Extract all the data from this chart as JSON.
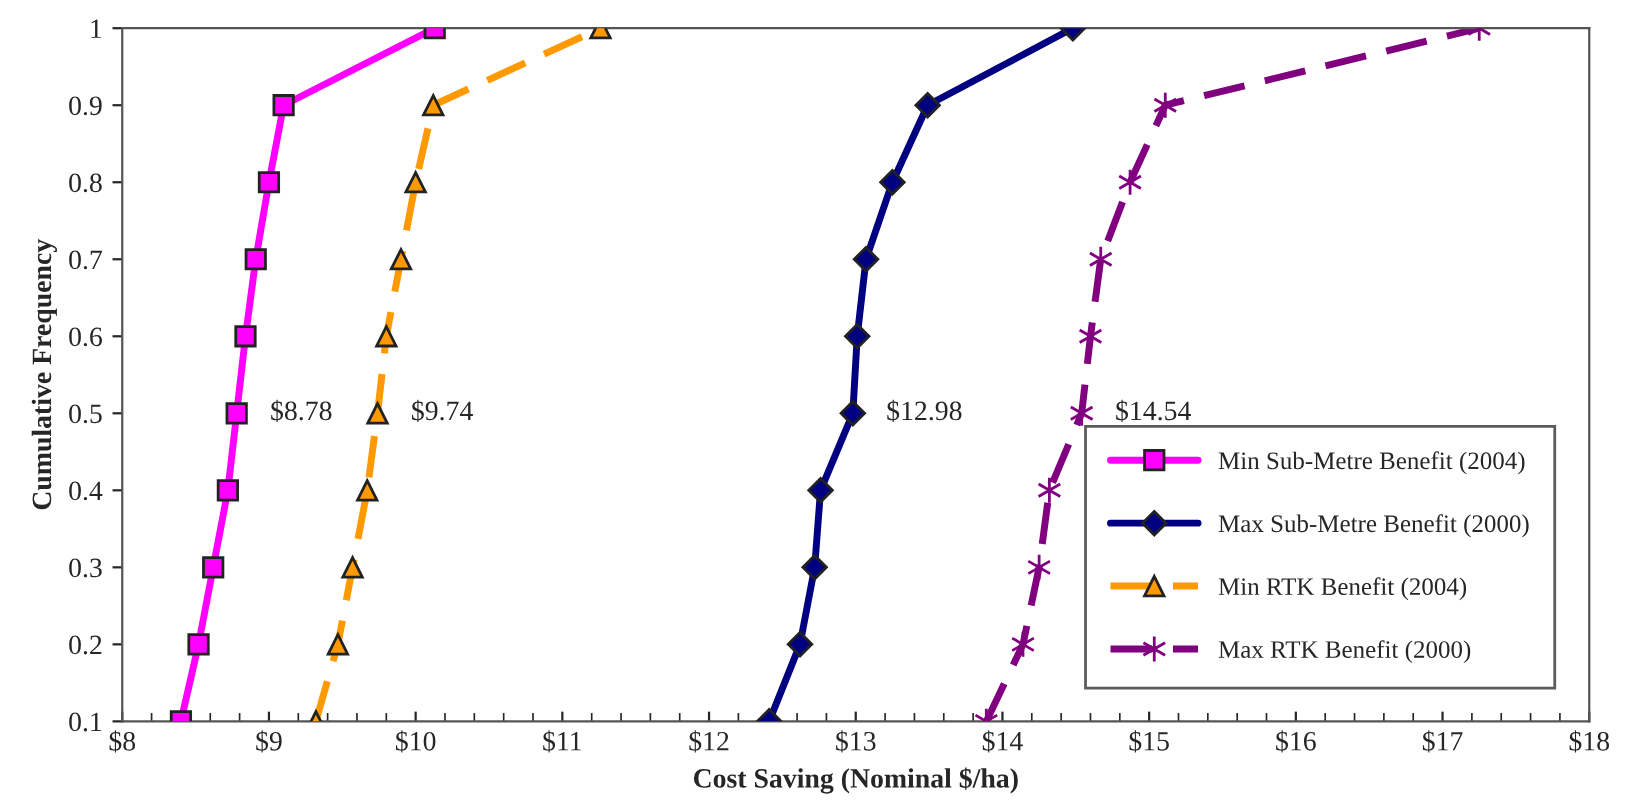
{
  "chart_data": {
    "type": "line",
    "xlabel": "Cost Saving (Nominal $/ha)",
    "ylabel": "Cumulative Frequency",
    "xlim": [
      8,
      18
    ],
    "xticks": [
      {
        "value": 8,
        "label": "$8"
      },
      {
        "value": 9,
        "label": "$9"
      },
      {
        "value": 10,
        "label": "$10"
      },
      {
        "value": 11,
        "label": "$11"
      },
      {
        "value": 12,
        "label": "$12"
      },
      {
        "value": 13,
        "label": "$13"
      },
      {
        "value": 14,
        "label": "$14"
      },
      {
        "value": 15,
        "label": "$15"
      },
      {
        "value": 16,
        "label": "$16"
      },
      {
        "value": 17,
        "label": "$17"
      },
      {
        "value": 18,
        "label": "$18"
      }
    ],
    "ylim": [
      0.1,
      1
    ],
    "yticks": [
      0.1,
      0.2,
      0.3,
      0.4,
      0.5,
      0.6,
      0.7,
      0.8,
      0.9,
      1
    ],
    "grid": false,
    "legend": "bottom right",
    "series": [
      {
        "name": "Min Sub-Metre Benefit (2004)",
        "color": "#ff00ff",
        "marker": "square",
        "line_style": "solid",
        "x": [
          8.4,
          8.52,
          8.62,
          8.72,
          8.78,
          8.84,
          8.91,
          9.0,
          9.1,
          10.13
        ],
        "values": [
          0.1,
          0.2,
          0.3,
          0.4,
          0.5,
          0.6,
          0.7,
          0.8,
          0.9,
          1
        ]
      },
      {
        "name": "Max Sub-Metre Benefit (2000)",
        "color": "#000080",
        "marker": "diamond",
        "line_style": "solid",
        "x": [
          12.41,
          12.62,
          12.72,
          12.76,
          12.98,
          13.01,
          13.07,
          13.25,
          13.49,
          14.48
        ],
        "values": [
          0.1,
          0.2,
          0.3,
          0.4,
          0.5,
          0.6,
          0.7,
          0.8,
          0.9,
          1
        ]
      },
      {
        "name": "Min RTK Benefit (2004)",
        "color": "#ff9900",
        "marker": "triangle",
        "line_style": "dashed",
        "x": [
          9.32,
          9.47,
          9.57,
          9.67,
          9.74,
          9.8,
          9.9,
          10.0,
          10.12,
          11.26
        ],
        "values": [
          0.1,
          0.2,
          0.3,
          0.4,
          0.5,
          0.6,
          0.7,
          0.8,
          0.9,
          1
        ]
      },
      {
        "name": "Max RTK Benefit (2000)",
        "color": "#800080",
        "marker": "cross",
        "line_style": "dashed",
        "x": [
          13.89,
          14.14,
          14.25,
          14.32,
          14.54,
          14.6,
          14.67,
          14.87,
          15.11,
          17.25
        ],
        "values": [
          0.1,
          0.2,
          0.3,
          0.4,
          0.5,
          0.6,
          0.7,
          0.8,
          0.9,
          1
        ]
      }
    ],
    "annotations": [
      {
        "text": "$8.78",
        "x": 8.78,
        "y": 0.5
      },
      {
        "text": "$9.74",
        "x": 9.74,
        "y": 0.5
      },
      {
        "text": "$12.98",
        "x": 12.98,
        "y": 0.5
      },
      {
        "text": "$14.54",
        "x": 14.54,
        "y": 0.5
      }
    ]
  }
}
